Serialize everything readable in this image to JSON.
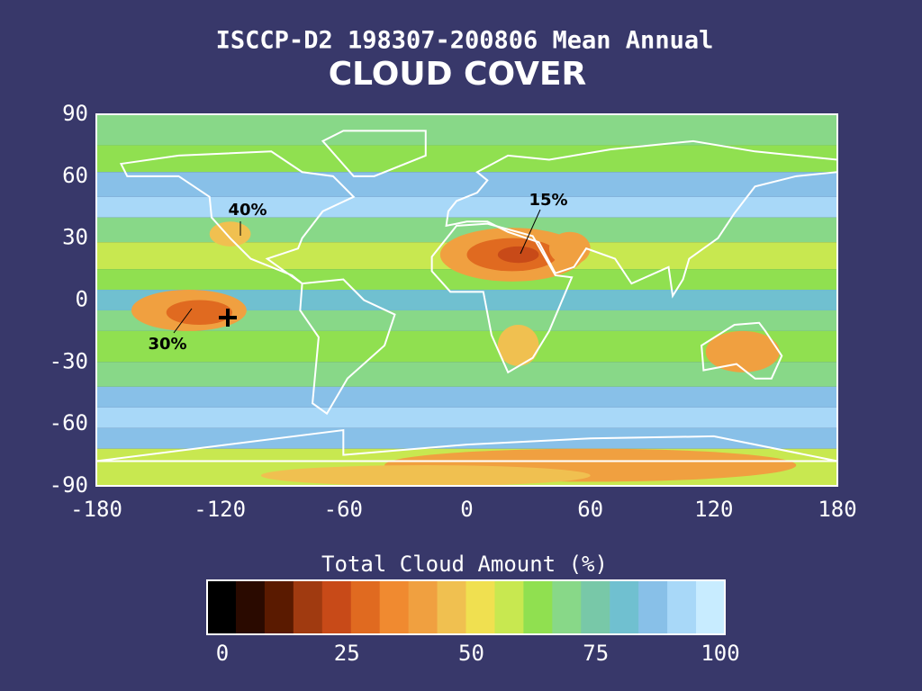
{
  "header": {
    "title": "ISCCP-D2 198307-200806 Mean Annual",
    "subtitle": "CLOUD COVER"
  },
  "map": {
    "xticks": [
      -180,
      -120,
      -60,
      0,
      60,
      120,
      180
    ],
    "yticks": [
      90,
      60,
      30,
      0,
      -30,
      -60,
      -90
    ],
    "annotations": [
      "40%",
      "15%",
      "30%"
    ]
  },
  "colorbar": {
    "label": "Total Cloud Amount (%)",
    "ticks": [
      0,
      25,
      50,
      75,
      100
    ],
    "colors": [
      "#000000",
      "#2a0a00",
      "#5a1a00",
      "#a03a10",
      "#c84a18",
      "#e06a20",
      "#f08a30",
      "#f0a040",
      "#f0c050",
      "#f0e050",
      "#c8e850",
      "#90e050",
      "#88d888",
      "#78c8a8",
      "#70c0d0",
      "#88c0e8",
      "#a8d8f8",
      "#c8ecff"
    ]
  }
}
